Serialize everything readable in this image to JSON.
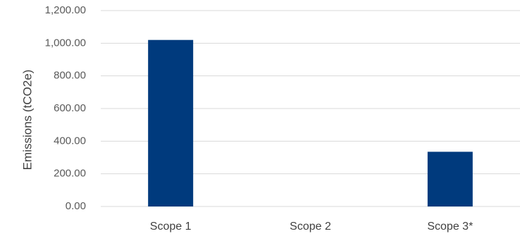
{
  "chart_data": {
    "type": "bar",
    "categories": [
      "Scope 1",
      "Scope 2",
      "Scope 3*"
    ],
    "values": [
      1020,
      0,
      335
    ],
    "title": "",
    "xlabel": "",
    "ylabel": "Emissions (tCO2e)",
    "ylim": [
      0,
      1200
    ],
    "yticks": [
      "0.00",
      "200.00",
      "400.00",
      "600.00",
      "800.00",
      "1,000.00",
      "1,200.00"
    ],
    "grid": true,
    "legend": "none",
    "bar_color": "#003a7d",
    "grid_color": "#d9d9d9"
  }
}
